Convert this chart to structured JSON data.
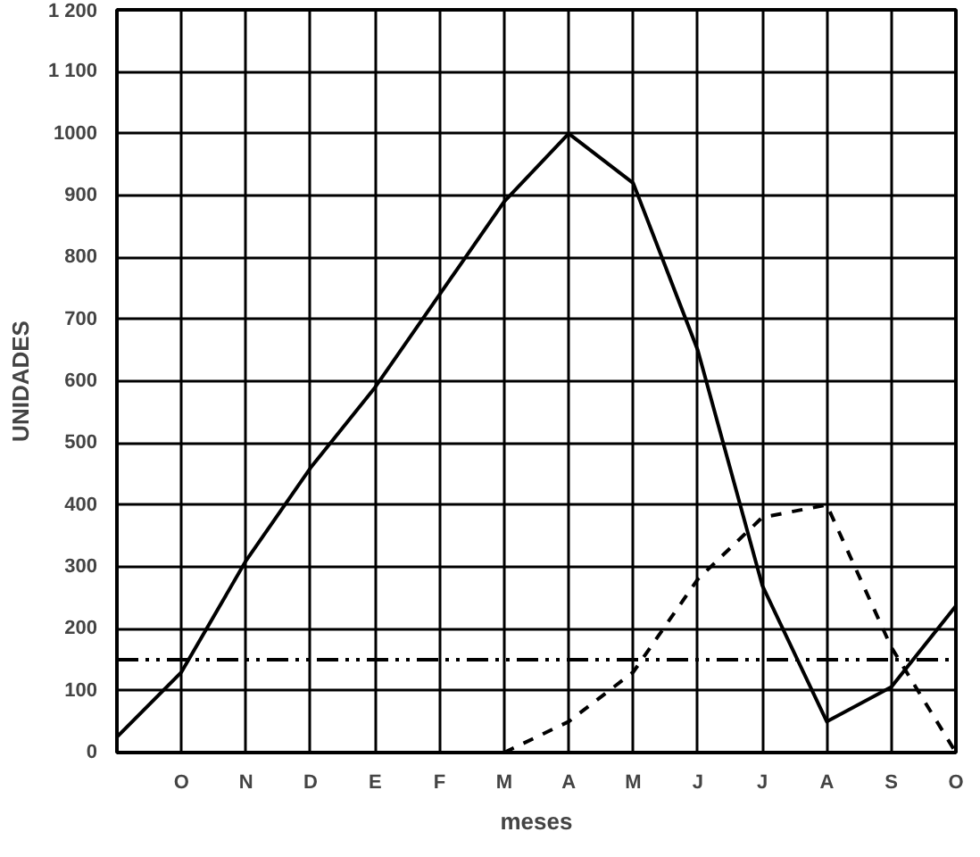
{
  "chart_data": {
    "type": "line",
    "xlabel": "meses",
    "ylabel": "UNIDADES",
    "categories": [
      null,
      "O",
      "N",
      "D",
      "E",
      "F",
      "M",
      "A",
      "M",
      "J",
      "J",
      "A",
      "S",
      "O"
    ],
    "ylim": [
      0,
      1200
    ],
    "yticks": [
      0,
      100,
      200,
      300,
      400,
      500,
      600,
      700,
      800,
      900,
      1000,
      {
        "value": 1100,
        "label": "1 100"
      },
      {
        "value": 1200,
        "label": "1 200"
      }
    ],
    "grid": true,
    "marker": "none",
    "series": [
      {
        "color": "#000000",
        "line_style": "solid",
        "values": [
          25,
          130,
          310,
          460,
          590,
          740,
          890,
          1000,
          920,
          650,
          270,
          50,
          106,
          237
        ]
      },
      {
        "color": "#000000",
        "line_style": "dashed",
        "values": [
          null,
          null,
          null,
          null,
          null,
          null,
          0,
          50,
          130,
          280,
          380,
          400,
          170,
          0
        ]
      }
    ],
    "ref_lines": [
      {
        "axis": "y",
        "value": 150,
        "color": "#000000",
        "line_style": "dashdotdot"
      }
    ]
  }
}
